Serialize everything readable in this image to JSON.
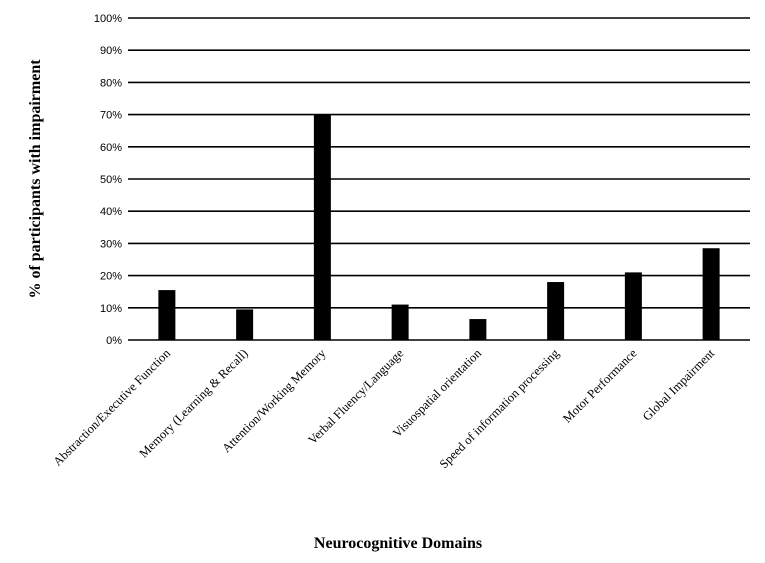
{
  "chart_data": {
    "type": "bar",
    "title": "",
    "xlabel": "Neurocognitive Domains",
    "ylabel": "% of participants with impairment",
    "categories": [
      "Abstraction/Executive Function",
      "Memory (Learning & Recall)",
      "Attention/Working Memory",
      "Verbal Fluency/Language",
      "Visuospatial orientation",
      "Speed of information processing",
      "Motor Performance",
      "Global Impairment"
    ],
    "values": [
      15.5,
      9.5,
      70,
      11,
      6.5,
      18,
      21,
      28.5
    ],
    "ylim": [
      0,
      100
    ],
    "yticks": [
      "0%",
      "10%",
      "20%",
      "30%",
      "40%",
      "50%",
      "60%",
      "70%",
      "80%",
      "90%",
      "100%"
    ],
    "grid": true,
    "legend": "none",
    "bar_color": "#000000",
    "grid_color": "#000000"
  }
}
